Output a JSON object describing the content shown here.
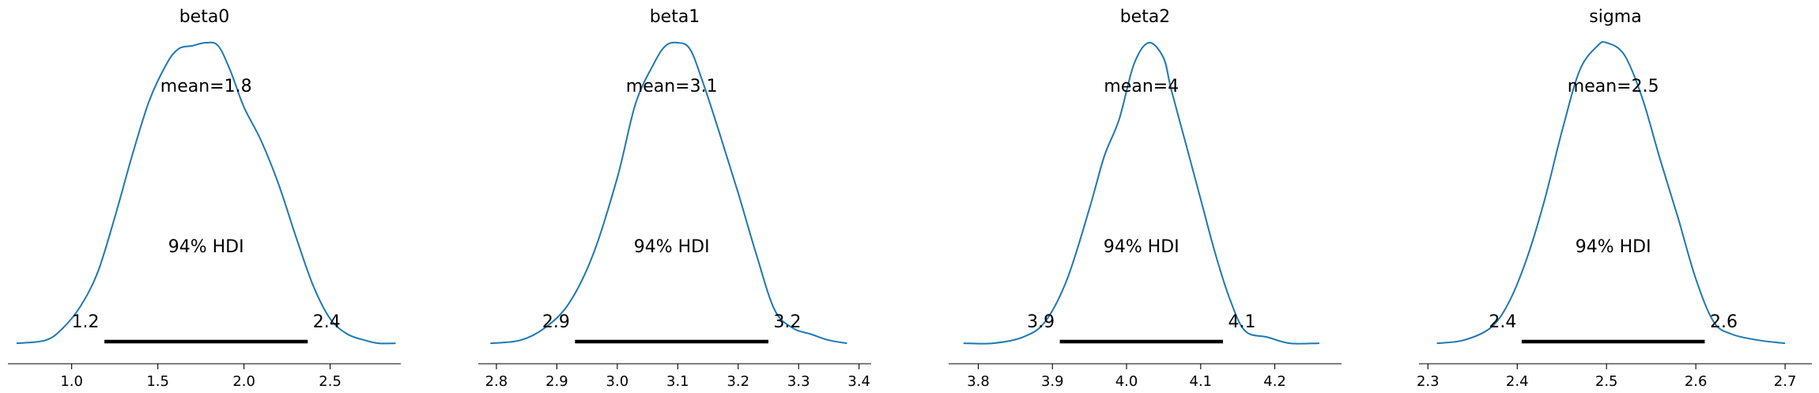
{
  "chart_data": [
    {
      "type": "area",
      "title": "beta0",
      "mean_label": "mean=1.8",
      "hdi_label": "94% HDI",
      "hdi": [
        1.19,
        2.37
      ],
      "hdi_low_label": "1.2",
      "hdi_high_label": "2.4",
      "xlim": [
        0.63,
        2.91
      ],
      "ticks": [
        1.0,
        1.5,
        2.0,
        2.5
      ],
      "tick_labels": [
        "1.0",
        "1.5",
        "2.0",
        "2.5"
      ],
      "line_color": "#1f77b4",
      "density": {
        "x": [
          0.68,
          0.85,
          0.95,
          1.05,
          1.15,
          1.25,
          1.35,
          1.45,
          1.55,
          1.62,
          1.7,
          1.78,
          1.85,
          1.92,
          2.0,
          2.1,
          2.2,
          2.3,
          2.4,
          2.5,
          2.6,
          2.7,
          2.78,
          2.88
        ],
        "y": [
          0.01,
          0.02,
          0.06,
          0.13,
          0.24,
          0.42,
          0.62,
          0.8,
          0.92,
          0.97,
          0.98,
          0.99,
          0.98,
          0.9,
          0.78,
          0.67,
          0.53,
          0.36,
          0.2,
          0.09,
          0.04,
          0.02,
          0.01,
          0.01
        ]
      }
    },
    {
      "type": "area",
      "title": "beta1",
      "mean_label": "mean=3.1",
      "hdi_label": "94% HDI",
      "hdi": [
        2.93,
        3.25
      ],
      "hdi_low_label": "2.9",
      "hdi_high_label": "3.2",
      "xlim": [
        2.77,
        3.42
      ],
      "ticks": [
        2.8,
        2.9,
        3.0,
        3.1,
        3.2,
        3.3,
        3.4
      ],
      "tick_labels": [
        "2.8",
        "2.9",
        "3.0",
        "3.1",
        "3.2",
        "3.3",
        "3.4"
      ],
      "line_color": "#1f77b4",
      "density": {
        "x": [
          2.79,
          2.84,
          2.88,
          2.92,
          2.96,
          3.0,
          3.03,
          3.06,
          3.08,
          3.1,
          3.12,
          3.14,
          3.17,
          3.2,
          3.23,
          3.26,
          3.29,
          3.32,
          3.35,
          3.38
        ],
        "y": [
          0.01,
          0.02,
          0.06,
          0.14,
          0.3,
          0.55,
          0.79,
          0.92,
          0.98,
          0.99,
          0.97,
          0.87,
          0.69,
          0.5,
          0.3,
          0.12,
          0.06,
          0.04,
          0.02,
          0.01
        ]
      }
    },
    {
      "type": "area",
      "title": "beta2",
      "mean_label": "mean=4",
      "hdi_label": "94% HDI",
      "hdi": [
        3.91,
        4.13
      ],
      "hdi_low_label": "3.9",
      "hdi_high_label": "4.1",
      "xlim": [
        3.76,
        4.29
      ],
      "ticks": [
        3.8,
        3.9,
        4.0,
        4.1,
        4.2
      ],
      "tick_labels": [
        "3.8",
        "3.9",
        "4.0",
        "4.1",
        "4.2"
      ],
      "line_color": "#1f77b4",
      "density": {
        "x": [
          3.78,
          3.82,
          3.86,
          3.89,
          3.92,
          3.95,
          3.97,
          3.99,
          4.01,
          4.03,
          4.05,
          4.06,
          4.08,
          4.1,
          4.12,
          4.14,
          4.16,
          4.19,
          4.22,
          4.26
        ],
        "y": [
          0.01,
          0.01,
          0.03,
          0.08,
          0.22,
          0.45,
          0.62,
          0.74,
          0.92,
          0.99,
          0.94,
          0.84,
          0.66,
          0.48,
          0.3,
          0.15,
          0.05,
          0.03,
          0.01,
          0.01
        ]
      }
    },
    {
      "type": "area",
      "title": "sigma",
      "mean_label": "mean=2.5",
      "hdi_label": "94% HDI",
      "hdi": [
        2.405,
        2.61
      ],
      "hdi_low_label": "2.4",
      "hdi_high_label": "2.6",
      "xlim": [
        2.29,
        2.73
      ],
      "ticks": [
        2.3,
        2.4,
        2.5,
        2.6,
        2.7
      ],
      "tick_labels": [
        "2.3",
        "2.4",
        "2.5",
        "2.6",
        "2.7"
      ],
      "line_color": "#1f77b4",
      "density": {
        "x": [
          2.31,
          2.34,
          2.37,
          2.39,
          2.41,
          2.43,
          2.45,
          2.47,
          2.49,
          2.5,
          2.52,
          2.54,
          2.56,
          2.58,
          2.6,
          2.62,
          2.64,
          2.67,
          2.7
        ],
        "y": [
          0.01,
          0.02,
          0.06,
          0.14,
          0.28,
          0.47,
          0.7,
          0.9,
          0.98,
          0.99,
          0.95,
          0.81,
          0.61,
          0.42,
          0.22,
          0.08,
          0.04,
          0.02,
          0.01
        ]
      }
    }
  ]
}
